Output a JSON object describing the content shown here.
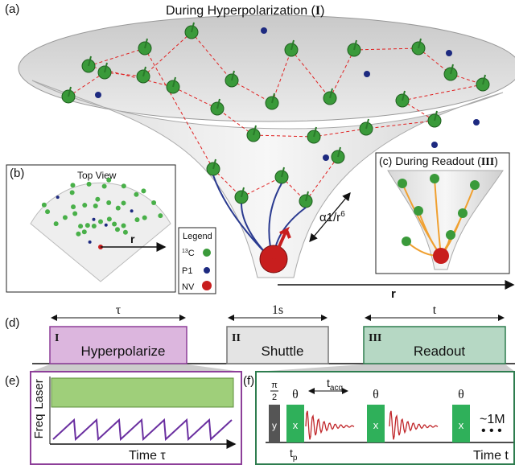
{
  "panel_a": {
    "label": "(a)",
    "title": "During Hyperpolarization (",
    "title_numeral": "I",
    "title_end": ")",
    "scaling": "α1/r",
    "scaling_exp": "6",
    "axis": "r"
  },
  "panel_b": {
    "label": "(b)",
    "title": "Top View",
    "axis": "r"
  },
  "legend": {
    "title": "Legend",
    "items": [
      {
        "mass": "13",
        "label": "C"
      },
      {
        "label": "P1"
      },
      {
        "label": "NV"
      }
    ]
  },
  "panel_c": {
    "label": "(c) During Readout (",
    "numeral": "III",
    "end": ")"
  },
  "panel_d": {
    "label": "(d)",
    "stages": [
      {
        "duration": "τ",
        "numeral": "I",
        "name": "Hyperpolarize"
      },
      {
        "duration": "1s",
        "numeral": "II",
        "name": "Shuttle"
      },
      {
        "duration": "t",
        "numeral": "III",
        "name": "Readout"
      }
    ]
  },
  "panel_e": {
    "label": "(e)",
    "rows": [
      "Laser",
      "Freq"
    ],
    "axis": "Time τ"
  },
  "panel_f": {
    "label": "(f)",
    "first_pulse": {
      "angle_num": "π",
      "angle_den": "2",
      "phase": "y"
    },
    "pulses": [
      {
        "angle": "θ",
        "phase": "x"
      },
      {
        "angle": "θ",
        "phase": "x"
      },
      {
        "angle": "θ",
        "phase": "x"
      }
    ],
    "acq": "t",
    "acq_sub": "acq",
    "pulse_width": "t",
    "pulse_width_sub": "p",
    "repeat": "~1M",
    "axis": "Time t"
  }
}
